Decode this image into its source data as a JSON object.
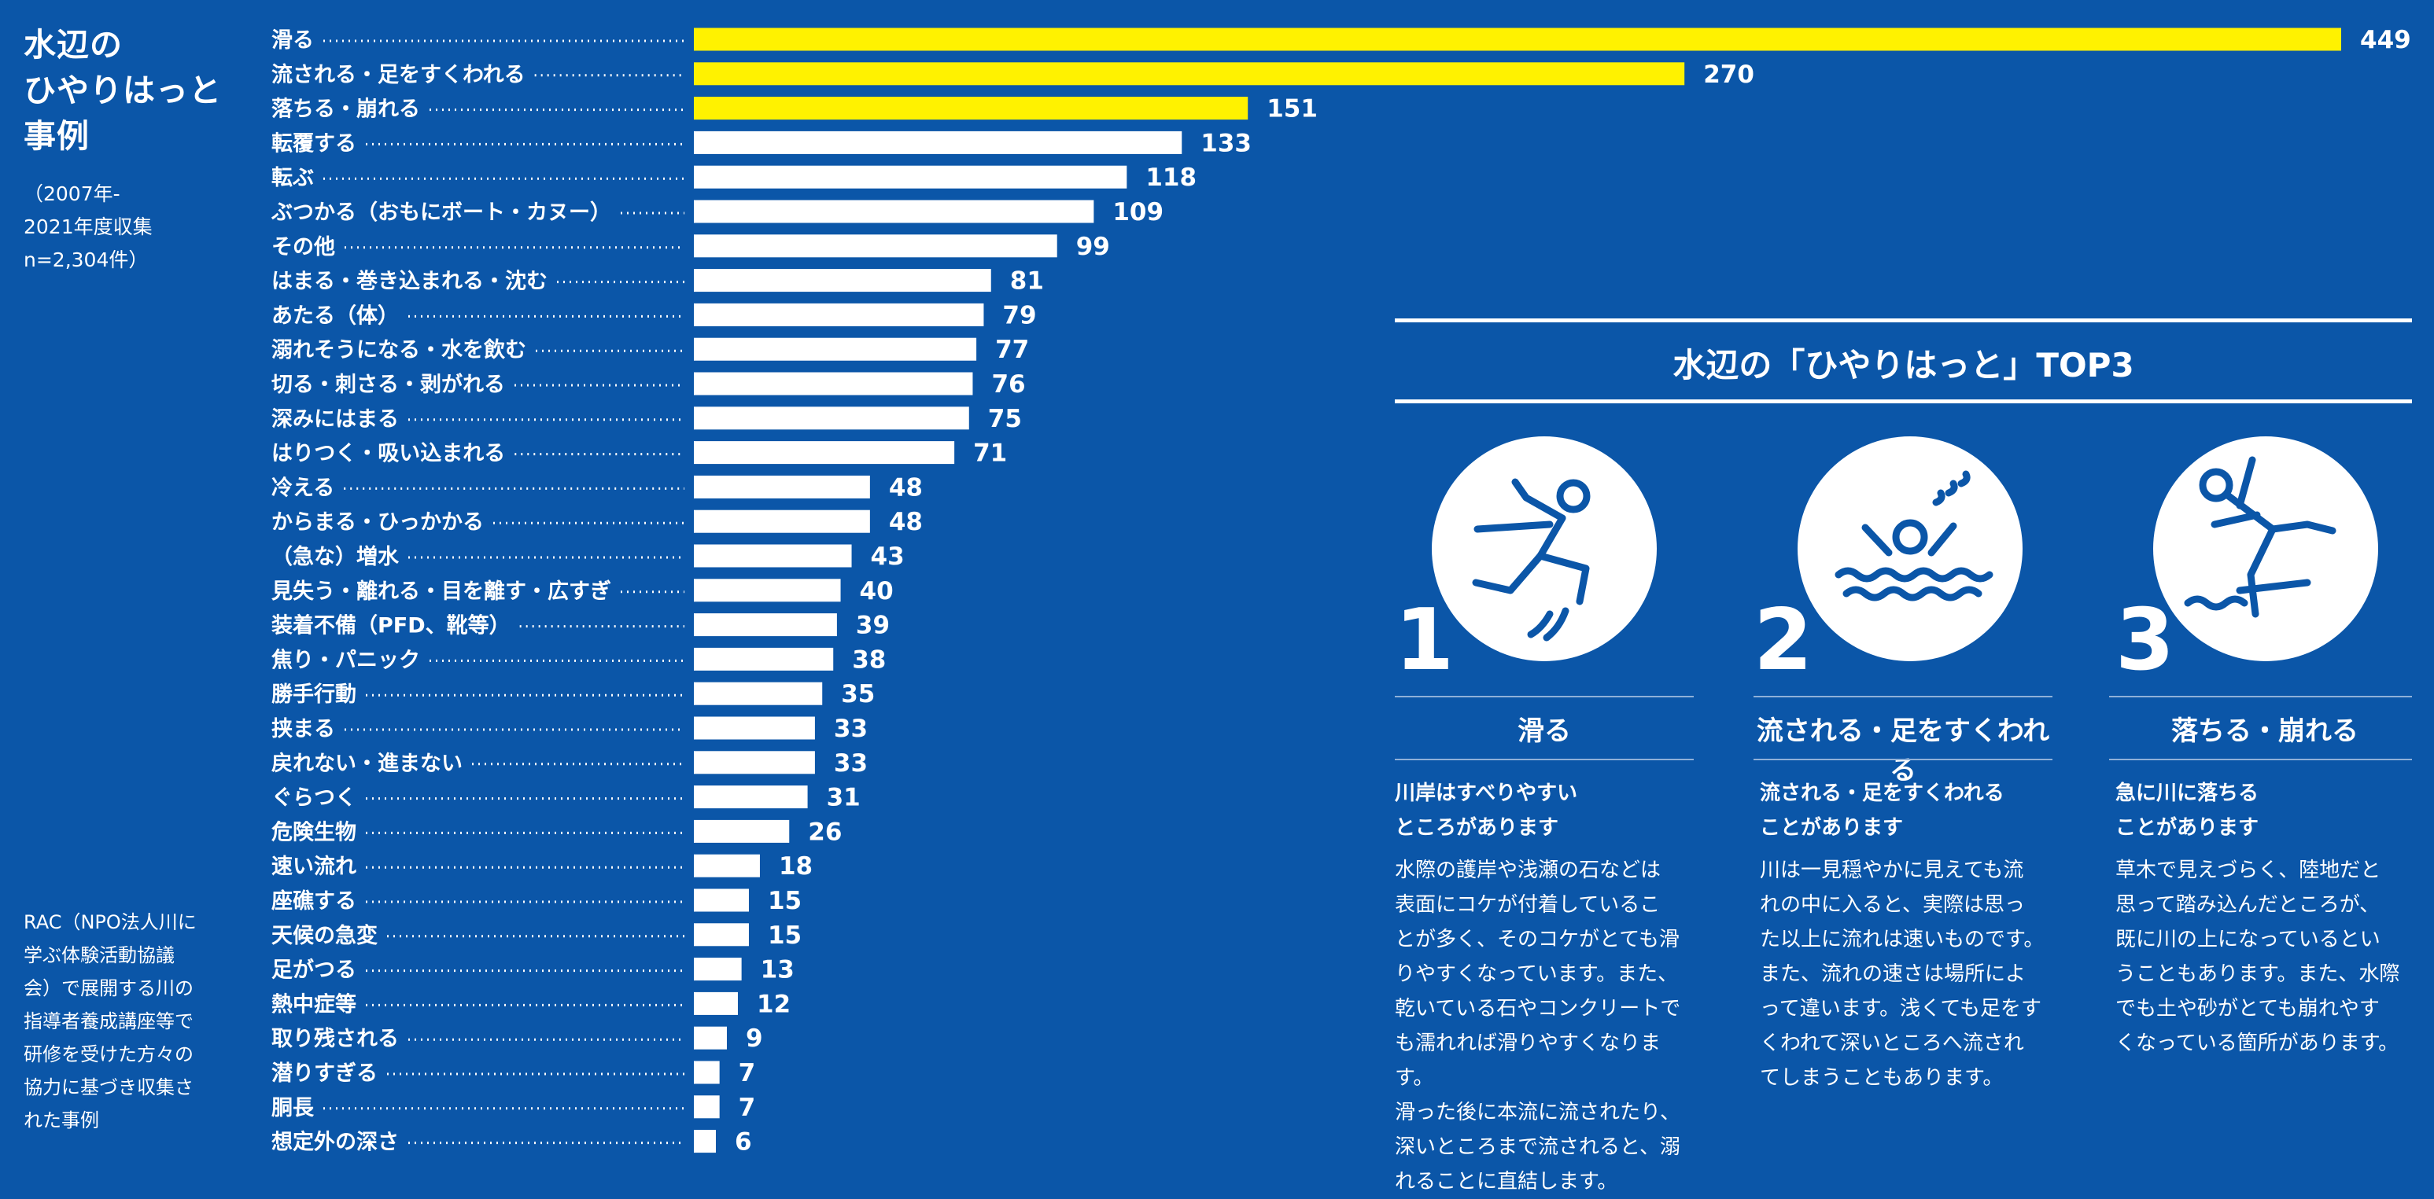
{
  "title": {
    "lines": [
      "水辺の",
      "ひやりはっと",
      "事例"
    ],
    "sub_lines": [
      "（2007年-",
      "2021年度収集",
      "n=2,304件）"
    ]
  },
  "note_lines": [
    "RAC（NPO法人川に",
    "学ぶ体験活動協議",
    "会）で展開する川の",
    "指導者養成講座等で",
    "研修を受けた方々の",
    "協力に基づき収集さ",
    "れた事例"
  ],
  "colors": {
    "background": "#0b56a8",
    "highlight_bar": "#fff200",
    "bar": "#ffffff",
    "text": "#ffffff"
  },
  "chart_data": {
    "type": "bar",
    "orientation": "horizontal",
    "categories": [
      "滑る",
      "流される・足をすくわれる",
      "落ちる・崩れる",
      "転覆する",
      "転ぶ",
      "ぶつかる（おもにボート・カヌー）",
      "その他",
      "はまる・巻き込まれる・沈む",
      "あたる（体）",
      "溺れそうになる・水を飲む",
      "切る・刺さる・剥がれる",
      "深みにはまる",
      "はりつく・吸い込まれる",
      "冷える",
      "からまる・ひっかかる",
      "（急な）増水",
      "見失う・離れる・目を離す・広すぎ",
      "装着不備（PFD、靴等）",
      "焦り・パニック",
      "勝手行動",
      "挟まる",
      "戻れない・進まない",
      "ぐらつく",
      "危険生物",
      "速い流れ",
      "座礁する",
      "天候の急変",
      "足がつる",
      "熱中症等",
      "取り残される",
      "潜りすぎる",
      "胴長",
      "想定外の深さ"
    ],
    "values": [
      449,
      270,
      151,
      133,
      118,
      109,
      99,
      81,
      79,
      77,
      76,
      75,
      71,
      48,
      48,
      43,
      40,
      39,
      38,
      35,
      33,
      33,
      31,
      26,
      18,
      15,
      15,
      13,
      12,
      9,
      7,
      7,
      6
    ],
    "highlight_top": 3,
    "xlim": [
      0,
      449
    ]
  },
  "top3": {
    "title": "水辺の「ひやりはっと」TOP3",
    "items": [
      {
        "rank": "1",
        "icon": "slipping-person-icon",
        "heading": "滑る",
        "subtitle_lines": [
          "川岸はすべりやすい",
          "ところがあります"
        ],
        "body_lines": [
          "水際の護岸や浅瀬の石などは",
          "表面にコケが付着しているこ",
          "とが多く、そのコケがとても滑",
          "りやすくなっています。また、",
          "乾いている石やコンクリートで",
          "も濡れれば滑りやすくなります。",
          "滑った後に本流に流されたり、",
          "深いところまで流されると、溺",
          "れることに直結します。"
        ]
      },
      {
        "rank": "2",
        "icon": "drowning-person-icon",
        "heading": "流される・足をすくわれる",
        "subtitle_lines": [
          "流される・足をすくわれる",
          "ことがあります"
        ],
        "body_lines": [
          "川は一見穏やかに見えても流",
          "れの中に入ると、実際は思っ",
          "た以上に流れは速いものです。",
          "また、流れの速さは場所によ",
          "って違います。浅くても足をす",
          "くわれて深いところへ流され",
          "てしまうこともあります。"
        ]
      },
      {
        "rank": "3",
        "icon": "falling-person-icon",
        "heading": "落ちる・崩れる",
        "subtitle_lines": [
          "急に川に落ちる",
          "ことがあります"
        ],
        "body_lines": [
          "草木で見えづらく、陸地だと",
          "思って踏み込んだところが、",
          "既に川の上になっているとい",
          "うこともあります。また、水際",
          "でも土や砂がとても崩れやす",
          "くなっている箇所があります。"
        ]
      }
    ]
  }
}
